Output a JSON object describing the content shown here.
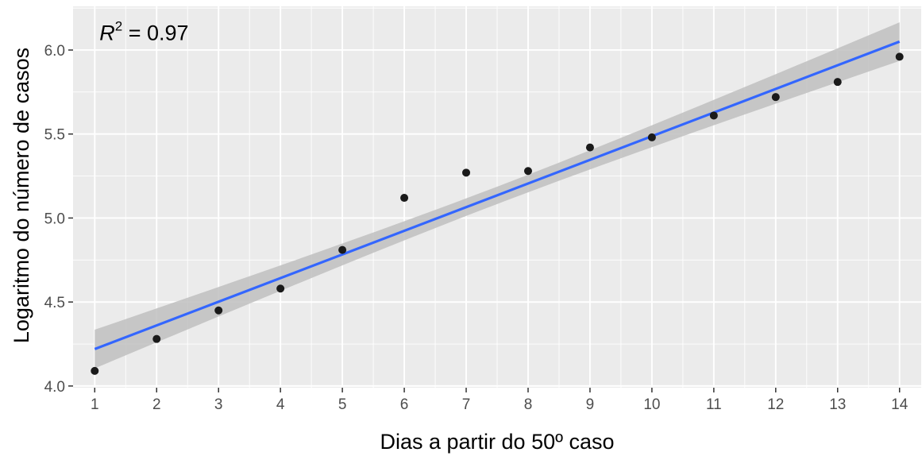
{
  "chart_data": {
    "type": "scatter",
    "xlabel": "Dias a partir do 50º caso",
    "ylabel": "Logaritmo do número de casos",
    "xlim": [
      0.65,
      14.35
    ],
    "ylim": [
      3.99,
      6.26
    ],
    "x_ticks": [
      1,
      2,
      3,
      4,
      5,
      6,
      7,
      8,
      9,
      10,
      11,
      12,
      13,
      14
    ],
    "y_ticks": [
      4.0,
      4.5,
      5.0,
      5.5,
      6.0
    ],
    "y_tick_labels": [
      "4.0",
      "4.5",
      "5.0",
      "5.5",
      "6.0"
    ],
    "grid": true,
    "series": [
      {
        "kind": "points",
        "x": [
          1,
          2,
          3,
          4,
          5,
          6,
          7,
          8,
          9,
          10,
          11,
          12,
          13,
          14
        ],
        "y": [
          4.09,
          4.28,
          4.45,
          4.58,
          4.81,
          5.12,
          5.27,
          5.28,
          5.42,
          5.48,
          5.61,
          5.72,
          5.81,
          5.96
        ]
      },
      {
        "kind": "fit",
        "x": [
          1,
          14
        ],
        "y": [
          4.22,
          6.05
        ],
        "ci_low": [
          4.11,
          5.94
        ],
        "ci_high": [
          4.34,
          6.17
        ]
      }
    ],
    "annotation": {
      "base": "R",
      "superscript": "2",
      "text": " = 0.97",
      "x": 1,
      "y": 6.06
    },
    "colors": {
      "panel": "#ebebeb",
      "grid": "#ffffff",
      "points": "#1a1a1a",
      "fit_line": "#3366ff",
      "ci_band": "#bfbfbf"
    }
  }
}
